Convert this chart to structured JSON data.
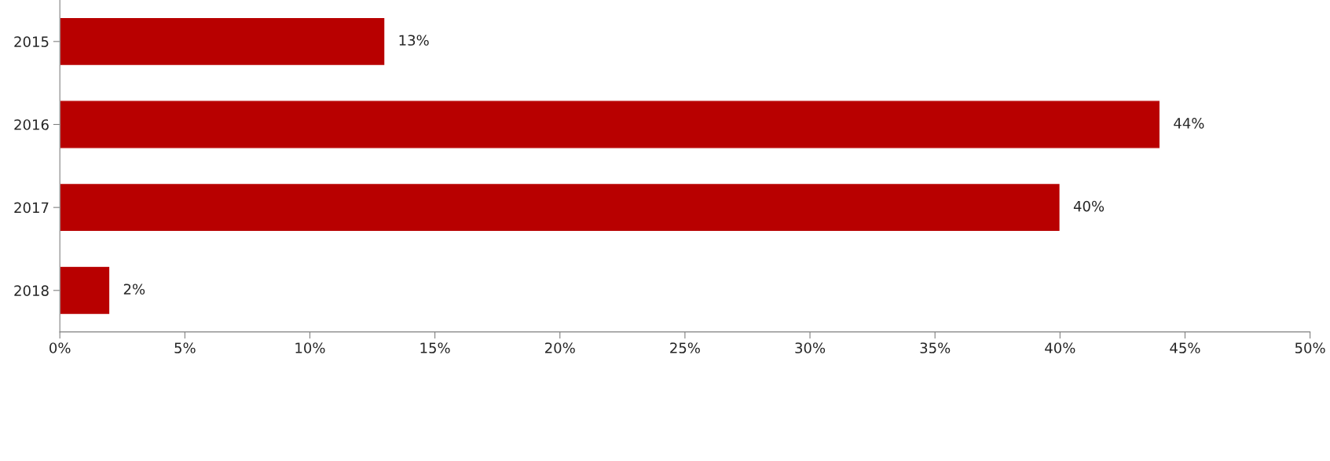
{
  "chart_data": {
    "type": "bar",
    "orientation": "horizontal",
    "categories": [
      "2015",
      "2016",
      "2017",
      "2018"
    ],
    "series": [
      {
        "color": "#b80000",
        "values": [
          13,
          44,
          40,
          2
        ]
      }
    ],
    "xlim": [
      0,
      50
    ],
    "xticks": [
      {
        "value": 0,
        "label": "0%"
      },
      {
        "value": 5,
        "label": "5%"
      },
      {
        "value": 10,
        "label": "10%"
      },
      {
        "value": 15,
        "label": "15%"
      },
      {
        "value": 20,
        "label": "20%"
      },
      {
        "value": 25,
        "label": "25%"
      },
      {
        "value": 30,
        "label": "30%"
      },
      {
        "value": 35,
        "label": "35%"
      },
      {
        "value": 40,
        "label": "40%"
      },
      {
        "value": 45,
        "label": "45%"
      },
      {
        "value": 50,
        "label": "50%"
      }
    ],
    "value_labels": [
      "13%",
      "44%",
      "40%",
      "2%"
    ],
    "grid": false
  }
}
